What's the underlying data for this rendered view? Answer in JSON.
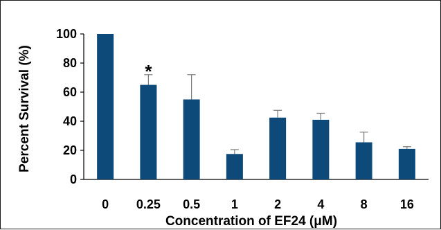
{
  "chart_data": {
    "type": "bar",
    "title": "",
    "xlabel": "Concentration of EF24 (μM)",
    "ylabel": "Percent Survival (%)",
    "categories": [
      "0",
      "0.25",
      "0.5",
      "1",
      "2",
      "4",
      "8",
      "16"
    ],
    "values": [
      100,
      65,
      55,
      17.5,
      42.5,
      41,
      25.5,
      21
    ],
    "error_upper": [
      0,
      7,
      17,
      3,
      5,
      4.5,
      7,
      1.5
    ],
    "annotations": [
      {
        "category": "0.25",
        "text": "*"
      }
    ],
    "ylim": [
      0,
      100
    ],
    "yticks": [
      0,
      20,
      40,
      60,
      80,
      100
    ],
    "bar_color": "#0d4a7a",
    "grid": false,
    "legend": "none"
  }
}
